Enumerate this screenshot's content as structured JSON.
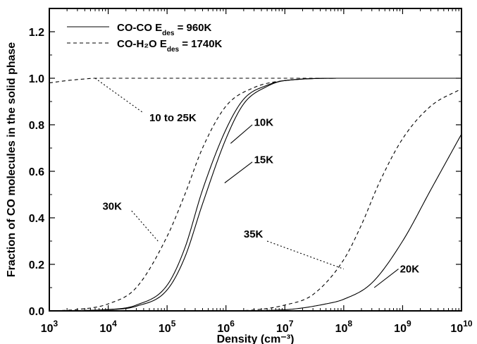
{
  "chart_data": {
    "type": "line",
    "xlabel": "Density (cm⁻³)",
    "ylabel": "Fraction of CO molecules in the solid phase",
    "x_scale": "log",
    "xlim": [
      1000,
      10000000000
    ],
    "ylim": [
      0.0,
      1.3
    ],
    "x_ticks": [
      {
        "value": 1000,
        "base": "10",
        "exp": "3"
      },
      {
        "value": 10000,
        "base": "10",
        "exp": "4"
      },
      {
        "value": 100000,
        "base": "10",
        "exp": "5"
      },
      {
        "value": 1000000,
        "base": "10",
        "exp": "6"
      },
      {
        "value": 10000000,
        "base": "10",
        "exp": "7"
      },
      {
        "value": 100000000,
        "base": "10",
        "exp": "8"
      },
      {
        "value": 1000000000,
        "base": "10",
        "exp": "9"
      },
      {
        "value": 10000000000,
        "base": "10",
        "exp": "10"
      }
    ],
    "y_ticks": [
      {
        "value": 0.0,
        "label": "0.0"
      },
      {
        "value": 0.2,
        "label": "0.2"
      },
      {
        "value": 0.4,
        "label": "0.4"
      },
      {
        "value": 0.6,
        "label": "0.6"
      },
      {
        "value": 0.8,
        "label": "0.8"
      },
      {
        "value": 1.0,
        "label": "1.0"
      },
      {
        "value": 1.2,
        "label": "1.2"
      }
    ],
    "grid": false,
    "legend": {
      "placement": "top-left",
      "entries": [
        {
          "style": "solid",
          "text": "CO-CO   E",
          "sub": "des",
          "tail": " = 960K"
        },
        {
          "style": "dashed",
          "text": "CO-H₂O  E",
          "sub": "des",
          "tail": " = 1740K"
        }
      ]
    },
    "series": [
      {
        "style": "dashed",
        "x": [
          1000,
          2000,
          4000,
          6000,
          10000,
          100000,
          1000000,
          10000000000
        ],
        "y": [
          0.98,
          0.99,
          0.997,
          1.0,
          1.0,
          1.0,
          1.0,
          1.0
        ]
      },
      {
        "style": "dashed",
        "x": [
          1000,
          3000,
          10000,
          30000,
          100000,
          200000,
          400000,
          1000000,
          3000000,
          10000000,
          100000000,
          1000000000,
          10000000000
        ],
        "y": [
          0.0,
          0.006,
          0.03,
          0.1,
          0.32,
          0.5,
          0.7,
          0.88,
          0.96,
          0.99,
          1.0,
          1.0,
          1.0
        ]
      },
      {
        "style": "dashed",
        "x": [
          1000000,
          3000000,
          10000000,
          30000000,
          100000000,
          200000000,
          400000000,
          1000000000,
          3000000000,
          10000000000
        ],
        "y": [
          0.0,
          0.004,
          0.025,
          0.07,
          0.22,
          0.37,
          0.55,
          0.74,
          0.88,
          0.955
        ]
      },
      {
        "style": "solid",
        "x": [
          1000,
          10000,
          30000,
          100000,
          200000,
          400000,
          1000000,
          2000000,
          5000000,
          10000000,
          100000000,
          1000000000,
          10000000000
        ],
        "y": [
          0.0,
          0.006,
          0.025,
          0.11,
          0.27,
          0.52,
          0.78,
          0.91,
          0.97,
          0.99,
          1.0,
          1.0,
          1.0
        ]
      },
      {
        "style": "solid",
        "x": [
          1000,
          10000,
          30000,
          100000,
          200000,
          400000,
          1000000,
          2000000,
          5000000,
          10000000,
          100000000,
          1000000000,
          10000000000
        ],
        "y": [
          0.0,
          0.005,
          0.02,
          0.09,
          0.23,
          0.46,
          0.74,
          0.89,
          0.965,
          0.99,
          1.0,
          1.0,
          1.0
        ]
      },
      {
        "style": "solid",
        "x": [
          1000000,
          10000000,
          50000000,
          100000000,
          300000000,
          1000000000,
          3000000000,
          10000000000
        ],
        "y": [
          0.0,
          0.005,
          0.03,
          0.05,
          0.12,
          0.3,
          0.52,
          0.76
        ]
      }
    ],
    "annotations": [
      {
        "text": "10 to 25K",
        "style": "dotted",
        "text_at": [
          50000,
          0.83
        ],
        "line": [
          [
            6000,
            1.0
          ],
          [
            40000,
            0.85
          ]
        ]
      },
      {
        "text": "30K",
        "style": "dotted",
        "text_at": [
          8000,
          0.45
        ],
        "line": [
          [
            25000,
            0.43
          ],
          [
            70000,
            0.3
          ]
        ]
      },
      {
        "text": "10K",
        "style": "solid",
        "text_at": [
          3000000,
          0.81
        ],
        "line": [
          [
            1200000,
            0.72
          ],
          [
            2800000,
            0.8
          ]
        ]
      },
      {
        "text": "15K",
        "style": "solid",
        "text_at": [
          3000000,
          0.65
        ],
        "line": [
          [
            950000,
            0.55
          ],
          [
            2800000,
            0.64
          ]
        ]
      },
      {
        "text": "35K",
        "style": "dotted",
        "text_at": [
          2000000,
          0.33
        ],
        "line": [
          [
            5000000,
            0.3
          ],
          [
            100000000,
            0.18
          ]
        ]
      },
      {
        "text": "20K",
        "style": "solid",
        "text_at": [
          900000000,
          0.18
        ],
        "line": [
          [
            330000000,
            0.1
          ],
          [
            850000000,
            0.18
          ]
        ]
      }
    ]
  }
}
